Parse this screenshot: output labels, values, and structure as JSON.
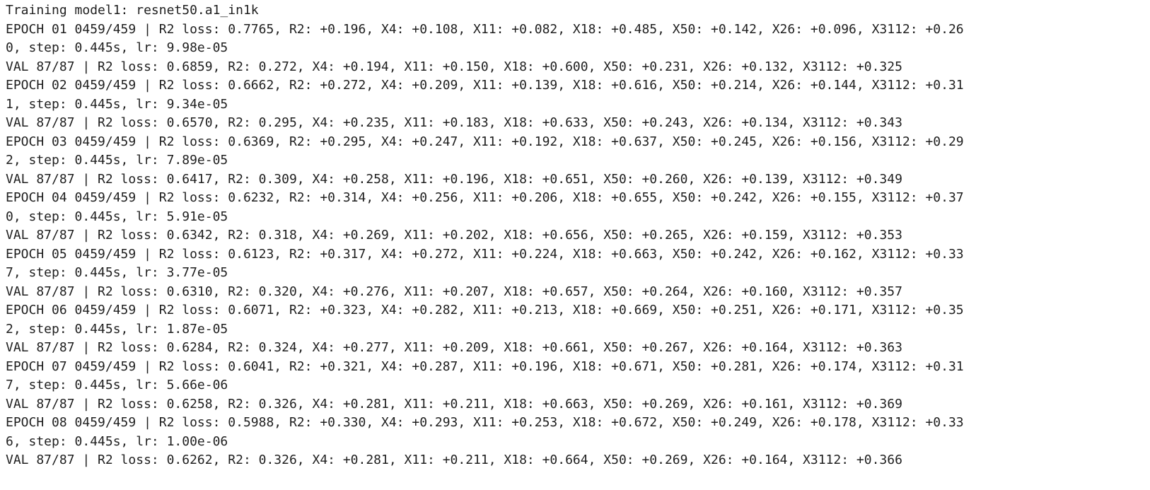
{
  "output": {
    "lines": [
      "Training model1: resnet50.a1_in1k",
      "EPOCH 01 0459/459 | R2 loss: 0.7765, R2: +0.196, X4: +0.108, X11: +0.082, X18: +0.485, X50: +0.142, X26: +0.096, X3112: +0.26",
      "0, step: 0.445s, lr: 9.98e-05",
      "VAL 87/87 | R2 loss: 0.6859, R2: 0.272, X4: +0.194, X11: +0.150, X18: +0.600, X50: +0.231, X26: +0.132, X3112: +0.325",
      "EPOCH 02 0459/459 | R2 loss: 0.6662, R2: +0.272, X4: +0.209, X11: +0.139, X18: +0.616, X50: +0.214, X26: +0.144, X3112: +0.31",
      "1, step: 0.445s, lr: 9.34e-05",
      "VAL 87/87 | R2 loss: 0.6570, R2: 0.295, X4: +0.235, X11: +0.183, X18: +0.633, X50: +0.243, X26: +0.134, X3112: +0.343",
      "EPOCH 03 0459/459 | R2 loss: 0.6369, R2: +0.295, X4: +0.247, X11: +0.192, X18: +0.637, X50: +0.245, X26: +0.156, X3112: +0.29",
      "2, step: 0.445s, lr: 7.89e-05",
      "VAL 87/87 | R2 loss: 0.6417, R2: 0.309, X4: +0.258, X11: +0.196, X18: +0.651, X50: +0.260, X26: +0.139, X3112: +0.349",
      "EPOCH 04 0459/459 | R2 loss: 0.6232, R2: +0.314, X4: +0.256, X11: +0.206, X18: +0.655, X50: +0.242, X26: +0.155, X3112: +0.37",
      "0, step: 0.445s, lr: 5.91e-05",
      "VAL 87/87 | R2 loss: 0.6342, R2: 0.318, X4: +0.269, X11: +0.202, X18: +0.656, X50: +0.265, X26: +0.159, X3112: +0.353",
      "EPOCH 05 0459/459 | R2 loss: 0.6123, R2: +0.317, X4: +0.272, X11: +0.224, X18: +0.663, X50: +0.242, X26: +0.162, X3112: +0.33",
      "7, step: 0.445s, lr: 3.77e-05",
      "VAL 87/87 | R2 loss: 0.6310, R2: 0.320, X4: +0.276, X11: +0.207, X18: +0.657, X50: +0.264, X26: +0.160, X3112: +0.357",
      "EPOCH 06 0459/459 | R2 loss: 0.6071, R2: +0.323, X4: +0.282, X11: +0.213, X18: +0.669, X50: +0.251, X26: +0.171, X3112: +0.35",
      "2, step: 0.445s, lr: 1.87e-05",
      "VAL 87/87 | R2 loss: 0.6284, R2: 0.324, X4: +0.277, X11: +0.209, X18: +0.661, X50: +0.267, X26: +0.164, X3112: +0.363",
      "EPOCH 07 0459/459 | R2 loss: 0.6041, R2: +0.321, X4: +0.287, X11: +0.196, X18: +0.671, X50: +0.281, X26: +0.174, X3112: +0.31",
      "7, step: 0.445s, lr: 5.66e-06",
      "VAL 87/87 | R2 loss: 0.6258, R2: 0.326, X4: +0.281, X11: +0.211, X18: +0.663, X50: +0.269, X26: +0.161, X3112: +0.369",
      "EPOCH 08 0459/459 | R2 loss: 0.5988, R2: +0.330, X4: +0.293, X11: +0.253, X18: +0.672, X50: +0.249, X26: +0.178, X3112: +0.33",
      "6, step: 0.445s, lr: 1.00e-06",
      "VAL 87/87 | R2 loss: 0.6262, R2: 0.326, X4: +0.281, X11: +0.211, X18: +0.664, X50: +0.269, X26: +0.164, X3112: +0.366"
    ]
  }
}
